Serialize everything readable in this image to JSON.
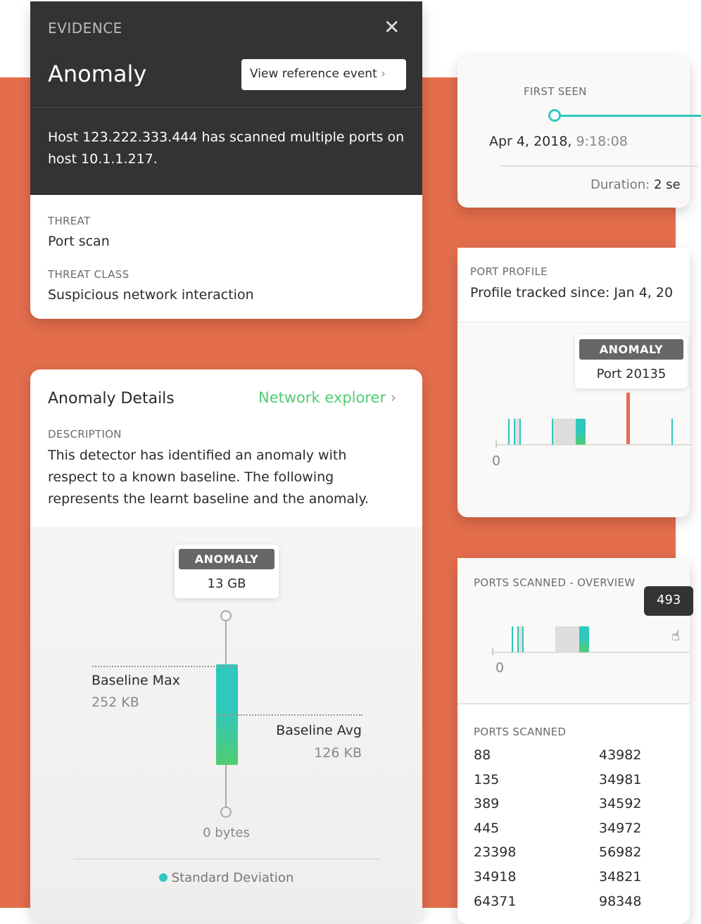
{
  "evidence": {
    "label": "EVIDENCE",
    "title": "Anomaly",
    "view_button": "View reference event",
    "description": "Host 123.222.333.444 has scanned multiple ports on host 10.1.1.217.",
    "threat_label": "THREAT",
    "threat": "Port scan",
    "threat_class_label": "THREAT CLASS",
    "threat_class": "Suspicious network interaction"
  },
  "details": {
    "title": "Anomaly Details",
    "link": "Network explorer",
    "description_label": "DESCRIPTION",
    "description": "This detector has identified an anomaly with respect to a known baseline. The following represents the learnt baseline and the anomaly.",
    "chart": {
      "anomaly_label": "ANOMALY",
      "anomaly_value": "13 GB",
      "baseline_max_label": "Baseline Max",
      "baseline_max": "252 KB",
      "baseline_avg_label": "Baseline Avg",
      "baseline_avg": "126 KB",
      "min_label": "0 bytes",
      "legend": "Standard Deviation"
    }
  },
  "first_seen": {
    "label": "FIRST SEEN",
    "date": "Apr 4, 2018,",
    "time": "9:18:08",
    "duration_label": "Duration:",
    "duration": "2 se"
  },
  "port_profile": {
    "label": "PORT PROFILE",
    "tracked": "Profile tracked since: Jan 4, 20",
    "anomaly_label": "ANOMALY",
    "anomaly_port": "Port 20135",
    "axis_zero": "0"
  },
  "overview": {
    "label": "PORTS SCANNED - OVERVIEW",
    "tooltip": "493",
    "axis_zero": "0"
  },
  "ports": {
    "label": "PORTS SCANNED",
    "col1": [
      "88",
      "135",
      "389",
      "445",
      "23398",
      "34918",
      "64371"
    ],
    "col2": [
      "43982",
      "34981",
      "34592",
      "34972",
      "56982",
      "34821",
      "98348"
    ]
  },
  "colors": {
    "background": "#e36d4c",
    "teal": "#2ec8bc",
    "green": "#52cc73",
    "anomaly": "#e36d4c"
  }
}
